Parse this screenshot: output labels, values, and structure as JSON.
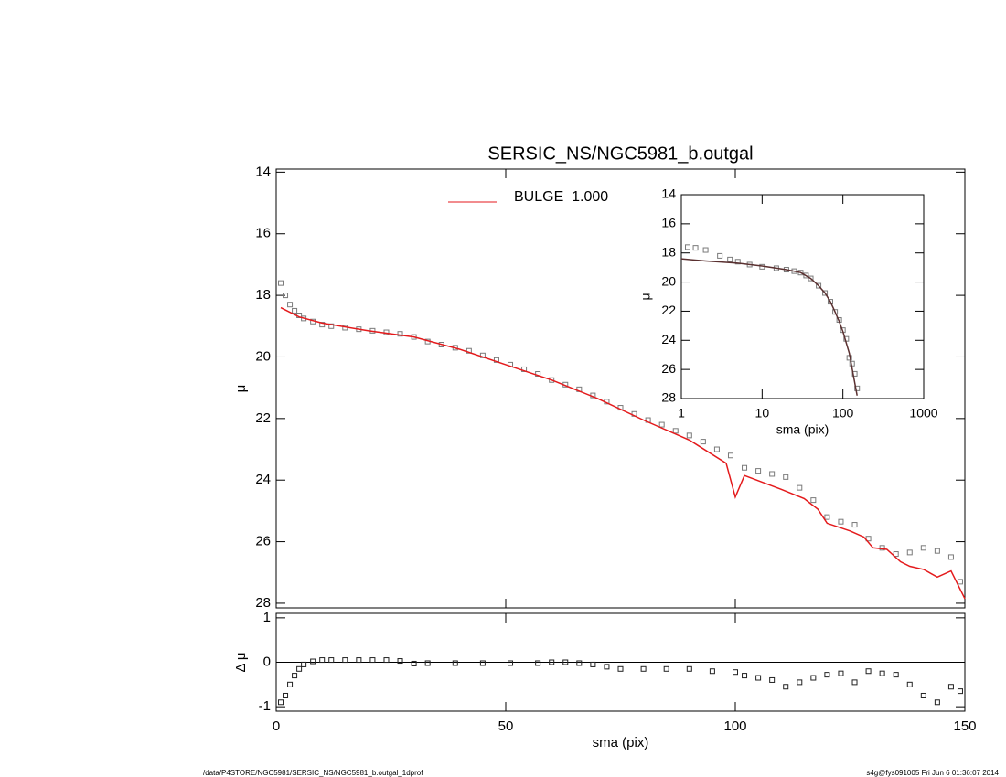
{
  "chart_data": [
    {
      "type": "scatter",
      "title": "SERSIC_NS/NGC5981_b.outgal",
      "ylabel": "μ",
      "xlim": [
        0,
        150
      ],
      "ylim": [
        13.9,
        28.15
      ],
      "yreverse": true,
      "xticks": [
        0,
        50,
        100,
        150
      ],
      "xticklabels": false,
      "yticks": [
        14,
        16,
        18,
        20,
        22,
        24,
        26,
        28
      ],
      "legend": "top-center",
      "series": [
        {
          "style": "markers",
          "color": "#7a7a7a",
          "x": [
            1,
            2,
            3,
            4,
            5,
            6,
            8,
            10,
            12,
            15,
            18,
            21,
            24,
            27,
            30,
            33,
            36,
            39,
            42,
            45,
            48,
            51,
            54,
            57,
            60,
            63,
            66,
            69,
            72,
            75,
            78,
            81,
            84,
            87,
            90,
            93,
            96,
            99,
            102,
            105,
            108,
            111,
            114,
            117,
            120,
            123,
            126,
            129,
            132,
            135,
            138,
            141,
            144,
            147,
            149
          ],
          "values": [
            17.6,
            18.0,
            18.3,
            18.5,
            18.65,
            18.75,
            18.85,
            18.95,
            19.0,
            19.05,
            19.1,
            19.15,
            19.2,
            19.25,
            19.35,
            19.5,
            19.6,
            19.7,
            19.8,
            19.95,
            20.1,
            20.25,
            20.4,
            20.55,
            20.75,
            20.9,
            21.05,
            21.25,
            21.45,
            21.65,
            21.85,
            22.05,
            22.2,
            22.4,
            22.55,
            22.75,
            23.0,
            23.2,
            23.6,
            23.7,
            23.8,
            23.9,
            24.25,
            24.65,
            25.2,
            25.35,
            25.45,
            25.9,
            26.2,
            26.4,
            26.35,
            26.2,
            26.3,
            26.5,
            27.3
          ]
        },
        {
          "style": "line",
          "name": "BULGE  1.000",
          "color": "#e41a1c",
          "x": [
            1,
            5,
            10,
            20,
            30,
            40,
            50,
            60,
            70,
            80,
            90,
            98,
            100,
            102,
            110,
            115,
            118,
            120,
            125,
            128,
            130,
            133,
            136,
            138,
            141,
            144,
            147,
            150
          ],
          "values": [
            18.4,
            18.7,
            18.9,
            19.15,
            19.35,
            19.75,
            20.25,
            20.75,
            21.35,
            22.05,
            22.7,
            23.45,
            24.55,
            23.85,
            24.3,
            24.6,
            24.95,
            25.4,
            25.65,
            25.85,
            26.2,
            26.25,
            26.65,
            26.8,
            26.9,
            27.15,
            26.95,
            27.85
          ]
        }
      ]
    },
    {
      "type": "scatter",
      "xlabel": "sma (pix)",
      "ylabel": "μ",
      "xlog": true,
      "xlim": [
        1,
        1000
      ],
      "ylim": [
        14,
        28
      ],
      "yreverse": true,
      "xticks": [
        1,
        10,
        100,
        1000
      ],
      "yticks": [
        14,
        16,
        18,
        20,
        22,
        24,
        26,
        28
      ],
      "series": [
        {
          "style": "markers",
          "color": "#7a7a7a",
          "x": [
            1.2,
            1.5,
            2,
            3,
            4,
            5,
            7,
            10,
            15,
            20,
            25,
            30,
            35,
            40,
            50,
            60,
            70,
            80,
            90,
            100,
            110,
            120,
            130,
            140,
            150
          ],
          "values": [
            17.6,
            17.65,
            17.8,
            18.2,
            18.45,
            18.6,
            18.8,
            18.95,
            19.05,
            19.15,
            19.25,
            19.35,
            19.55,
            19.75,
            20.25,
            20.75,
            21.35,
            22.05,
            22.6,
            23.3,
            23.9,
            25.2,
            25.6,
            26.3,
            27.3
          ]
        },
        {
          "style": "line",
          "color": "#5a3030",
          "x": [
            1,
            2,
            5,
            10,
            20,
            30,
            40,
            50,
            60,
            70,
            80,
            90,
            100,
            120,
            150
          ],
          "values": [
            18.4,
            18.55,
            18.7,
            18.9,
            19.15,
            19.35,
            19.75,
            20.25,
            20.75,
            21.35,
            22.05,
            22.7,
            23.4,
            24.9,
            27.8
          ]
        }
      ]
    },
    {
      "type": "scatter",
      "xlabel": "sma (pix)",
      "ylabel": "Δ μ",
      "xlim": [
        0,
        150
      ],
      "ylim": [
        -1.1,
        1.1
      ],
      "zero_line": true,
      "xticks": [
        0,
        50,
        100,
        150
      ],
      "yticks": [
        -1,
        0,
        1
      ],
      "series": [
        {
          "style": "markers",
          "color": "#222222",
          "x": [
            1,
            2,
            3,
            4,
            5,
            6,
            8,
            10,
            12,
            15,
            18,
            21,
            24,
            27,
            30,
            33,
            39,
            45,
            51,
            57,
            60,
            63,
            66,
            69,
            72,
            75,
            80,
            85,
            90,
            95,
            100,
            102,
            105,
            108,
            111,
            114,
            117,
            120,
            123,
            126,
            129,
            132,
            135,
            138,
            141,
            144,
            147,
            149
          ],
          "values": [
            -0.9,
            -0.75,
            -0.5,
            -0.3,
            -0.15,
            -0.05,
            0.02,
            0.05,
            0.05,
            0.05,
            0.05,
            0.05,
            0.05,
            0.03,
            -0.03,
            -0.02,
            -0.02,
            -0.02,
            -0.02,
            -0.02,
            0,
            0,
            -0.02,
            -0.05,
            -0.1,
            -0.15,
            -0.15,
            -0.15,
            -0.15,
            -0.2,
            -0.22,
            -0.3,
            -0.35,
            -0.4,
            -0.55,
            -0.45,
            -0.35,
            -0.28,
            -0.25,
            -0.45,
            -0.2,
            -0.25,
            -0.28,
            -0.5,
            -0.75,
            -0.9,
            -0.55,
            -0.65
          ]
        }
      ]
    }
  ],
  "footer": {
    "left": "/data/P4STORE/NGC5981/SERSIC_NS/NGC5981_b.outgal_1dprof",
    "right": "s4g@fys091005  Fri Jun  6 01:36:07 2014"
  }
}
